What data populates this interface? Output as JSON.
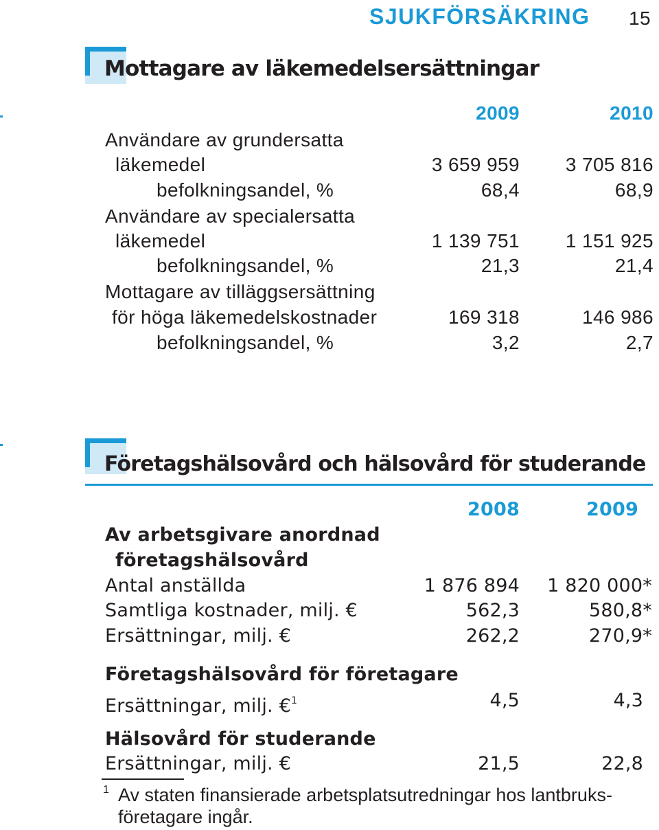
{
  "header": {
    "section": "SJUKFÖRSÄKRING",
    "page": "15"
  },
  "table1": {
    "title": "Mottagare av läkemedelsersättningar",
    "columns": [
      "2009",
      "2010"
    ],
    "rows": [
      {
        "label": "Användare av grundersatta"
      },
      {
        "label": "läkemedel",
        "values": [
          "3 659 959",
          "3 705 816"
        ]
      },
      {
        "label": "befolkningsandel, %",
        "values": [
          "68,4",
          "68,9"
        ]
      },
      {
        "label": "Användare av specialersatta"
      },
      {
        "label": "läkemedel",
        "values": [
          "1 139 751",
          "1 151 925"
        ]
      },
      {
        "label": "befolkningsandel, %",
        "values": [
          "21,3",
          "21,4"
        ]
      },
      {
        "label": "Mottagare av tilläggsersättning"
      },
      {
        "label": "för höga läkemedelskostnader",
        "values": [
          "169 318",
          "146 986"
        ]
      },
      {
        "label": "befolkningsandel, %",
        "values": [
          "3,2",
          "2,7"
        ]
      }
    ]
  },
  "table2": {
    "title": "Företagshälsovård och hälsovård för studerande",
    "columns": [
      "2008",
      "2009"
    ],
    "rows": [
      {
        "label": "Av arbetsgivare anordnad"
      },
      {
        "label": "företagshälsovård"
      },
      {
        "label": "Antal anställda",
        "values": [
          "1 876 894",
          "1 820 000*"
        ]
      },
      {
        "label": "Samtliga kostnader, milj. €",
        "values": [
          "562,3",
          "580,8*"
        ]
      },
      {
        "label": "Ersättningar, milj. €",
        "values": [
          "262,2",
          "270,9*"
        ]
      },
      {
        "label": "Företagshälsovård för företagare"
      },
      {
        "label": "Ersättningar, milj. €",
        "note": "1",
        "values": [
          "4,5",
          "4,3"
        ]
      },
      {
        "label": "Hälsovård för studerande"
      },
      {
        "label": "Ersättningar, milj. €",
        "values": [
          "21,5",
          "22,8"
        ]
      }
    ]
  },
  "footnote": {
    "marker": "1",
    "lines": [
      "Av staten finansierade arbetsplatsutredningar hos lantbruks-",
      "företagare ingår."
    ]
  }
}
